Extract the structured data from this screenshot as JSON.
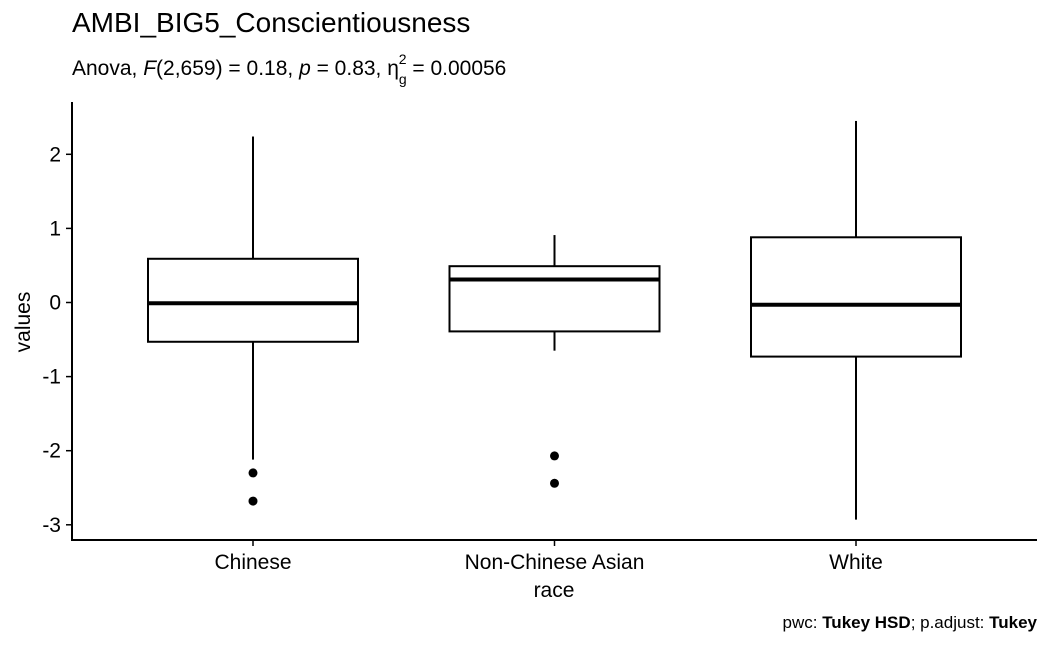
{
  "chart_data": {
    "type": "boxplot",
    "title": "AMBI_BIG5_Conscientiousness",
    "subtitle": {
      "prefix": "Anova, ",
      "F_symbol": "F",
      "F_args": "(2,659) = 0.18, ",
      "p_symbol": "p",
      "p_value": " = 0.83, ",
      "eta_symbol": "η",
      "eta_sub": "g",
      "eta_sup": "2",
      "eta_value": " = 0.00056"
    },
    "xlabel": "race",
    "ylabel": "values",
    "ylim": [
      -3.2,
      2.7
    ],
    "yticks": [
      2,
      1,
      0,
      -1,
      -2,
      -3
    ],
    "ytick_labels": [
      "2",
      "1",
      "0",
      "-1",
      "-2",
      "-3"
    ],
    "categories": [
      "Chinese",
      "Non-Chinese Asian",
      "White"
    ],
    "boxes": [
      {
        "category": "Chinese",
        "whisker_low": -2.12,
        "q1": -0.53,
        "median": -0.01,
        "q3": 0.59,
        "whisker_high": 2.24,
        "outliers": [
          -2.3,
          -2.68
        ]
      },
      {
        "category": "Non-Chinese Asian",
        "whisker_low": -0.65,
        "q1": -0.39,
        "median": 0.31,
        "q3": 0.49,
        "whisker_high": 0.91,
        "outliers": [
          -2.07,
          -2.44
        ]
      },
      {
        "category": "White",
        "whisker_low": -2.93,
        "q1": -0.73,
        "median": -0.03,
        "q3": 0.88,
        "whisker_high": 2.45,
        "outliers": []
      }
    ],
    "grid": false,
    "caption": {
      "pwc_label": "pwc: ",
      "pwc_value": "Tukey HSD",
      "sep": "; p.adjust: ",
      "adjust_value": "Tukey"
    }
  }
}
